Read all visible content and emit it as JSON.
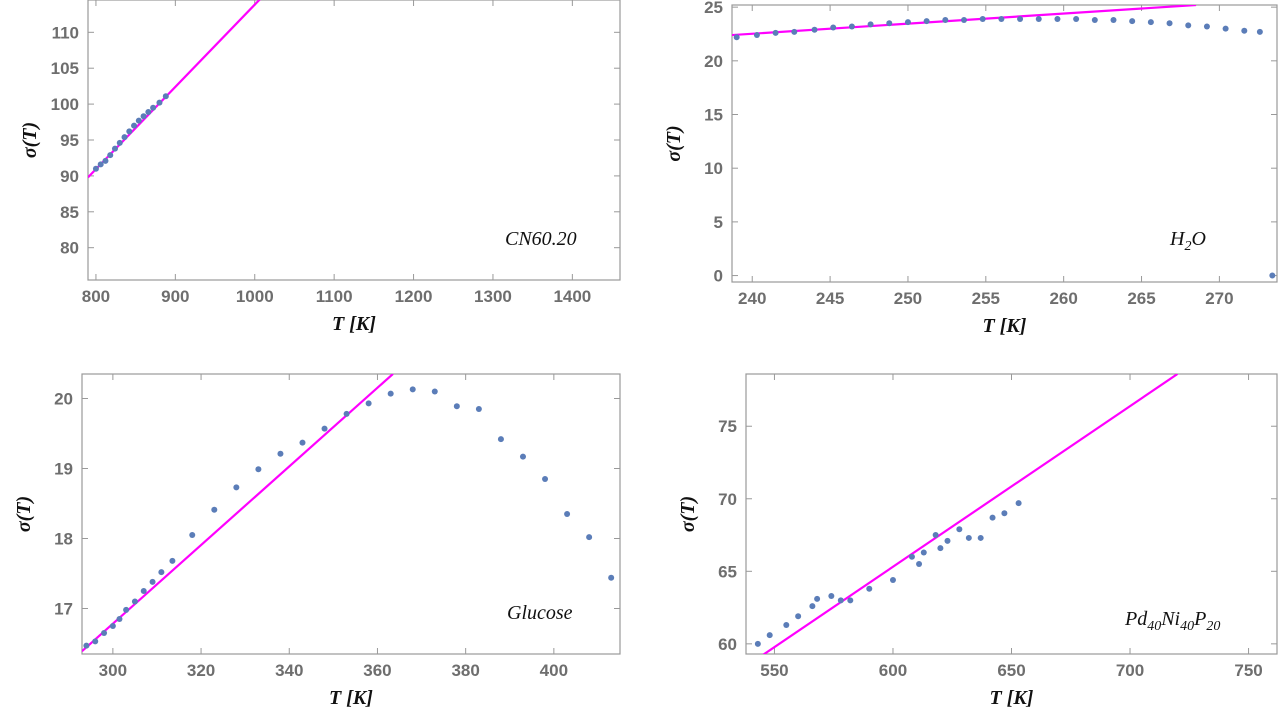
{
  "colors": {
    "fit_line": "#ff00ff",
    "points": "#5b7db8",
    "frame": "#999999"
  },
  "chart_data": [
    {
      "id": "cn60",
      "type": "scatter",
      "annotation": "CN60.20",
      "xlabel": "T [K]",
      "ylabel": "σ(T)",
      "xlim": [
        790,
        1460
      ],
      "ylim": [
        75.5,
        114.5
      ],
      "xticks": [
        800,
        900,
        1000,
        1100,
        1200,
        1300,
        1400
      ],
      "yticks": [
        80,
        85,
        90,
        95,
        100,
        105,
        110
      ],
      "points": [
        [
          800,
          91.0
        ],
        [
          806,
          91.6
        ],
        [
          812,
          92.1
        ],
        [
          818,
          92.9
        ],
        [
          824,
          93.8
        ],
        [
          830,
          94.6
        ],
        [
          836,
          95.4
        ],
        [
          842,
          96.2
        ],
        [
          848,
          97.0
        ],
        [
          854,
          97.7
        ],
        [
          860,
          98.3
        ],
        [
          866,
          98.9
        ],
        [
          872,
          99.5
        ],
        [
          880,
          100.2
        ],
        [
          888,
          101.1
        ]
      ],
      "fit": [
        [
          790,
          89.8
        ],
        [
          1010,
          115.0
        ]
      ]
    },
    {
      "id": "h2o",
      "type": "scatter",
      "annotation": "H",
      "annotation_sub": "2",
      "annotation_tail": "O",
      "xlabel": "T [K]",
      "ylabel": "σ(T)",
      "xlim": [
        238.7,
        273.7
      ],
      "ylim": [
        -0.6,
        25.2
      ],
      "xticks": [
        240,
        245,
        250,
        255,
        260,
        265,
        270
      ],
      "yticks": [
        0,
        5,
        10,
        15,
        20,
        25
      ],
      "points": [
        [
          239,
          22.2
        ],
        [
          240.3,
          22.4
        ],
        [
          241.5,
          22.6
        ],
        [
          242.7,
          22.7
        ],
        [
          244,
          22.9
        ],
        [
          245.2,
          23.1
        ],
        [
          246.4,
          23.2
        ],
        [
          247.6,
          23.4
        ],
        [
          248.8,
          23.5
        ],
        [
          250,
          23.6
        ],
        [
          251.2,
          23.7
        ],
        [
          252.4,
          23.8
        ],
        [
          253.6,
          23.8
        ],
        [
          254.8,
          23.9
        ],
        [
          256,
          23.9
        ],
        [
          257.2,
          23.9
        ],
        [
          258.4,
          23.9
        ],
        [
          259.6,
          23.9
        ],
        [
          260.8,
          23.9
        ],
        [
          262,
          23.8
        ],
        [
          263.2,
          23.8
        ],
        [
          264.4,
          23.7
        ],
        [
          265.6,
          23.6
        ],
        [
          266.8,
          23.5
        ],
        [
          268,
          23.3
        ],
        [
          269.2,
          23.2
        ],
        [
          270.4,
          23.0
        ],
        [
          271.6,
          22.8
        ],
        [
          272.6,
          22.7
        ],
        [
          273.4,
          0.0
        ]
      ],
      "fit": [
        [
          238.7,
          22.4
        ],
        [
          268.5,
          25.2
        ]
      ]
    },
    {
      "id": "glucose",
      "type": "scatter",
      "annotation": "Glucose",
      "xlabel": "T [K]",
      "ylabel": "σ(T)",
      "xlim": [
        293,
        415
      ],
      "ylim": [
        16.35,
        20.35
      ],
      "xticks": [
        300,
        320,
        340,
        360,
        380,
        400
      ],
      "yticks": [
        17,
        18,
        19,
        20
      ],
      "points": [
        [
          294,
          16.47
        ],
        [
          296,
          16.53
        ],
        [
          298,
          16.65
        ],
        [
          300,
          16.75
        ],
        [
          301.5,
          16.85
        ],
        [
          303,
          16.98
        ],
        [
          305,
          17.1
        ],
        [
          307,
          17.25
        ],
        [
          309,
          17.38
        ],
        [
          311,
          17.52
        ],
        [
          313.5,
          17.68
        ],
        [
          318,
          18.05
        ],
        [
          323,
          18.41
        ],
        [
          328,
          18.73
        ],
        [
          333,
          18.99
        ],
        [
          338,
          19.21
        ],
        [
          343,
          19.37
        ],
        [
          348,
          19.57
        ],
        [
          353,
          19.78
        ],
        [
          358,
          19.93
        ],
        [
          363,
          20.07
        ],
        [
          368,
          20.13
        ],
        [
          373,
          20.1
        ],
        [
          378,
          19.89
        ],
        [
          383,
          19.85
        ],
        [
          388,
          19.42
        ],
        [
          393,
          19.17
        ],
        [
          398,
          18.85
        ],
        [
          403,
          18.35
        ],
        [
          408,
          18.02
        ],
        [
          413,
          17.44
        ]
      ],
      "fit": [
        [
          293,
          16.39
        ],
        [
          363.5,
          20.35
        ]
      ]
    },
    {
      "id": "pd40",
      "type": "scatter",
      "annotation": "Pd",
      "annotation_parts": [
        "Pd",
        "40",
        "Ni",
        "40",
        "P",
        "20"
      ],
      "xlabel": "T [K]",
      "ylabel": "σ(T)",
      "xlim": [
        538,
        762
      ],
      "ylim": [
        59.3,
        78.6
      ],
      "xticks": [
        550,
        600,
        650,
        700,
        750
      ],
      "yticks": [
        60,
        65,
        70,
        75
      ],
      "points": [
        [
          543,
          60.0
        ],
        [
          548,
          60.6
        ],
        [
          555,
          61.3
        ],
        [
          560,
          61.9
        ],
        [
          566,
          62.6
        ],
        [
          568,
          63.1
        ],
        [
          574,
          63.3
        ],
        [
          578,
          63.0
        ],
        [
          582,
          63.0
        ],
        [
          590,
          63.8
        ],
        [
          600,
          64.4
        ],
        [
          608,
          66.0
        ],
        [
          611,
          65.5
        ],
        [
          613,
          66.3
        ],
        [
          618,
          67.5
        ],
        [
          620,
          66.6
        ],
        [
          623,
          67.1
        ],
        [
          628,
          67.9
        ],
        [
          632,
          67.3
        ],
        [
          637,
          67.3
        ],
        [
          642,
          68.7
        ],
        [
          647,
          69.0
        ],
        [
          653,
          69.7
        ]
      ],
      "fit": [
        [
          543,
          59.0
        ],
        [
          720,
          78.6
        ]
      ]
    }
  ]
}
